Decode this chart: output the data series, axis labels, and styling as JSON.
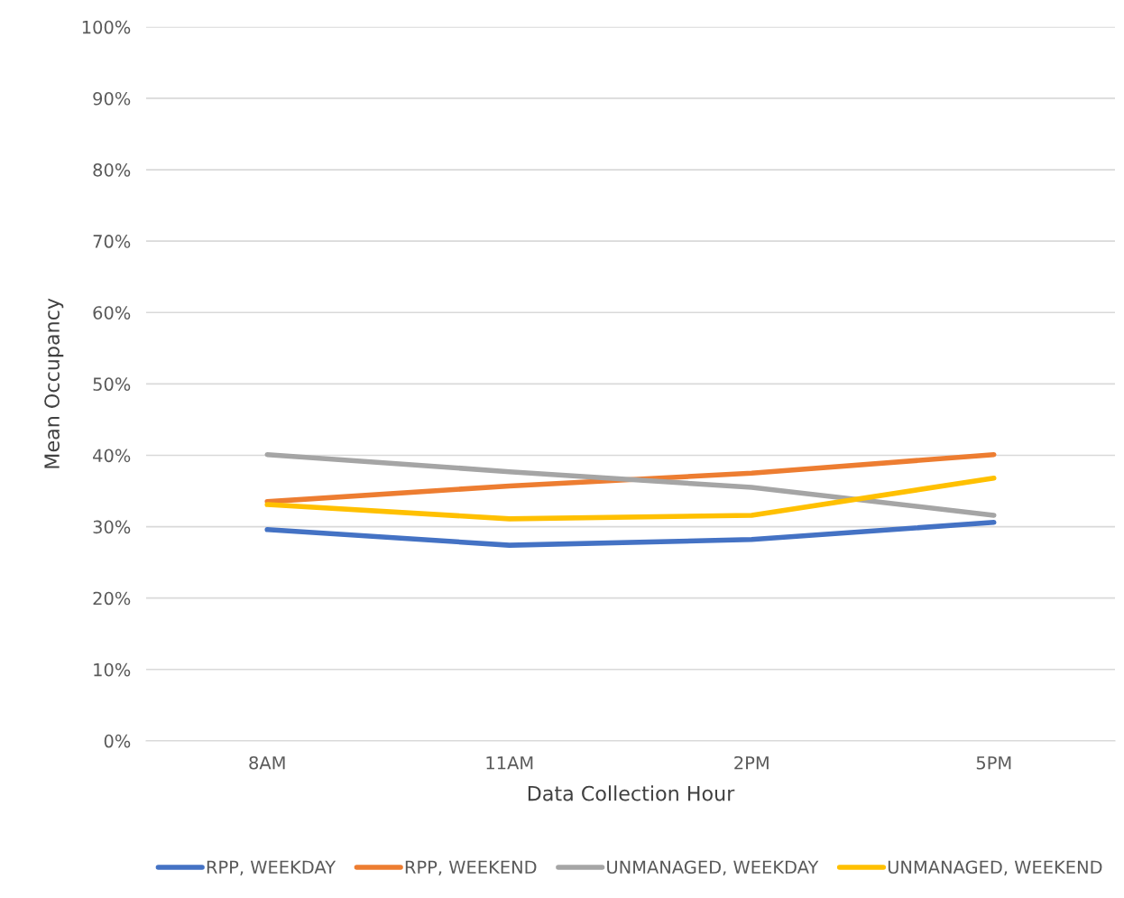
{
  "chart_data": {
    "type": "line",
    "xlabel": "Data Collection Hour",
    "ylabel": "Mean Occupancy",
    "categories": [
      "8AM",
      "11AM",
      "2PM",
      "5PM"
    ],
    "series": [
      {
        "name": "RPP, WEEKDAY",
        "color": "#4472c4",
        "values": [
          29.6,
          27.4,
          28.2,
          30.6
        ]
      },
      {
        "name": "RPP, WEEKEND",
        "color": "#ed7d31",
        "values": [
          33.5,
          35.7,
          37.5,
          40.1
        ]
      },
      {
        "name": "UNMANAGED, WEEKDAY",
        "color": "#a5a5a5",
        "values": [
          40.1,
          37.7,
          35.5,
          31.6
        ]
      },
      {
        "name": "UNMANAGED, WEEKEND",
        "color": "#ffc000",
        "values": [
          33.1,
          31.1,
          31.6,
          36.8
        ]
      }
    ],
    "ylim": [
      0,
      100
    ],
    "yticks": [
      {
        "value": 0,
        "label": "0%"
      },
      {
        "value": 10,
        "label": "10%"
      },
      {
        "value": 20,
        "label": "20%"
      },
      {
        "value": 30,
        "label": "30%"
      },
      {
        "value": 40,
        "label": "40%"
      },
      {
        "value": 50,
        "label": "50%"
      },
      {
        "value": 60,
        "label": "60%"
      },
      {
        "value": 70,
        "label": "70%"
      },
      {
        "value": 80,
        "label": "80%"
      },
      {
        "value": 90,
        "label": "90%"
      },
      {
        "value": 100,
        "label": "100%"
      }
    ],
    "grid": "y",
    "legend": "bottom",
    "marker": "none",
    "line_style": "solid"
  }
}
